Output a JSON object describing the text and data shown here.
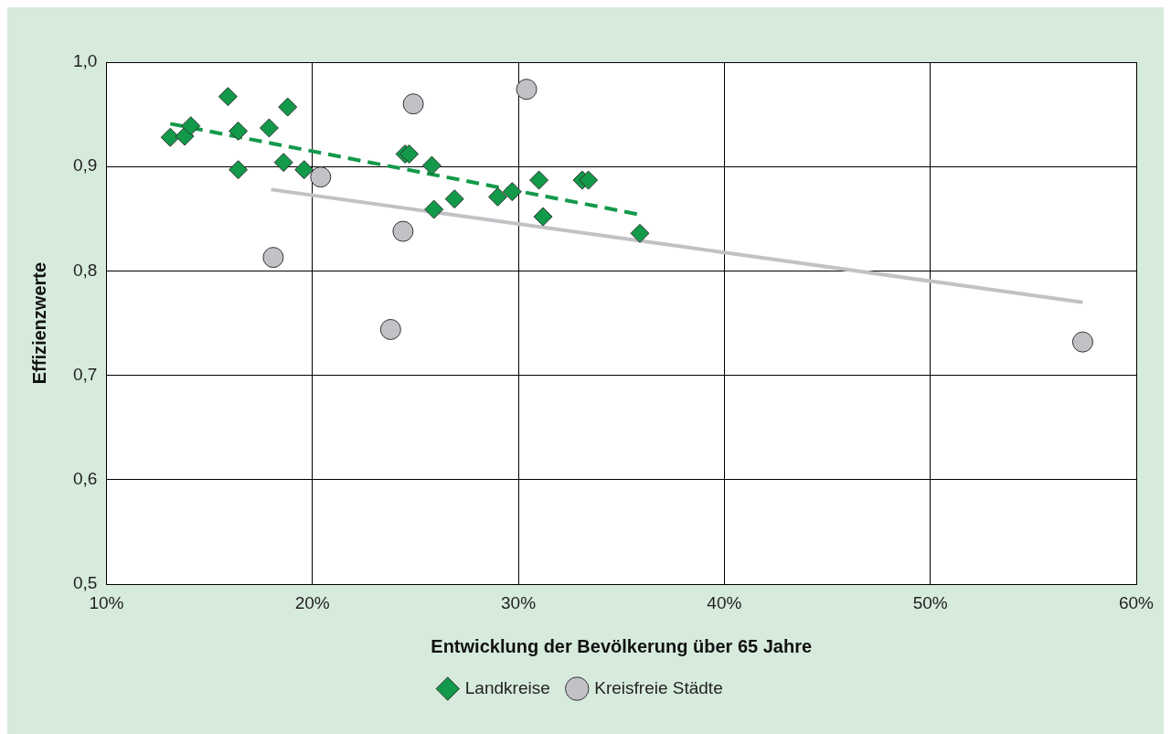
{
  "chart_data": {
    "type": "scatter",
    "xlabel": "Entwicklung der Bevölkerung über 65 Jahre",
    "ylabel": "Effizienzwerte",
    "xlim": [
      10,
      60
    ],
    "xticks": [
      {
        "value": 10,
        "label": "10%"
      },
      {
        "value": 20,
        "label": "20%"
      },
      {
        "value": 30,
        "label": "30%"
      },
      {
        "value": 40,
        "label": "40%"
      },
      {
        "value": 50,
        "label": "50%"
      },
      {
        "value": 60,
        "label": "60%"
      }
    ],
    "ylim": [
      0.5,
      1.0
    ],
    "yticks": [
      {
        "value": 0.5,
        "label": "0,5"
      },
      {
        "value": 0.6,
        "label": "0,6"
      },
      {
        "value": 0.7,
        "label": "0,7"
      },
      {
        "value": 0.8,
        "label": "0,8"
      },
      {
        "value": 0.9,
        "label": "0,9"
      },
      {
        "value": 1.0,
        "label": "1,0"
      }
    ],
    "grid": true,
    "legend": "bottom",
    "series": [
      {
        "name": "Landkreise",
        "color": "#12994a",
        "marker": "diamond",
        "x": [
          13.1,
          13.8,
          14.1,
          15.9,
          16.4,
          16.4,
          17.9,
          18.8,
          18.6,
          19.6,
          24.5,
          24.7,
          25.8,
          25.9,
          26.9,
          29.0,
          29.7,
          31.0,
          31.2,
          33.1,
          33.4,
          35.9
        ],
        "values": [
          0.928,
          0.929,
          0.939,
          0.967,
          0.934,
          0.897,
          0.937,
          0.957,
          0.904,
          0.897,
          0.912,
          0.912,
          0.901,
          0.859,
          0.869,
          0.871,
          0.876,
          0.887,
          0.852,
          0.887,
          0.887,
          0.836
        ]
      },
      {
        "name": "Kreisfreie Städte",
        "color": "#c2c1c6",
        "marker": "circle",
        "x": [
          18.1,
          20.4,
          23.8,
          24.4,
          24.9,
          30.4,
          57.4
        ],
        "values": [
          0.813,
          0.89,
          0.744,
          0.838,
          0.96,
          0.974,
          0.732
        ]
      },
      {
        "type": "line",
        "color": "#12994a",
        "line_style": "dashed",
        "marker": "none",
        "x": [
          13.1,
          35.9
        ],
        "values": [
          0.941,
          0.854
        ]
      },
      {
        "type": "line",
        "color": "#c2c1c6",
        "line_style": "solid",
        "marker": "none",
        "x": [
          18.0,
          57.4
        ],
        "values": [
          0.878,
          0.77
        ]
      }
    ]
  }
}
